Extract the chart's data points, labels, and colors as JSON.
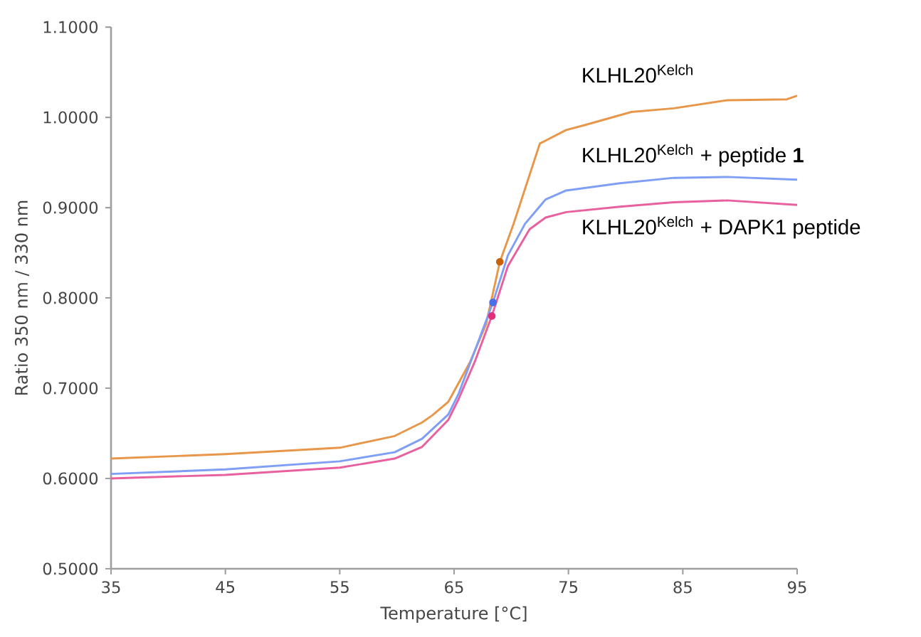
{
  "chart_data": {
    "type": "line",
    "xlabel": "Temperature [°C]",
    "ylabel": "Ratio 350 nm / 330 nm",
    "xlim": [
      35,
      95
    ],
    "xticks": [
      35,
      45,
      55,
      65,
      75,
      85,
      95
    ],
    "ylim": [
      0.5,
      1.1
    ],
    "yticks": [
      {
        "value": 0.5,
        "label": "0.5000"
      },
      {
        "value": 0.6,
        "label": "0.6000"
      },
      {
        "value": 0.7,
        "label": "0.7000"
      },
      {
        "value": 0.8,
        "label": "0.8000"
      },
      {
        "value": 0.9,
        "label": "0.9000"
      },
      {
        "value": 1.0,
        "label": "1.0000"
      },
      {
        "value": 1.1,
        "label": "1.1000"
      }
    ],
    "grid": false,
    "series": [
      {
        "name": "KLHL20$^{Kelch}$",
        "color": "#e8964a",
        "x": [
          35,
          45,
          55,
          59.8,
          62.2,
          63.1,
          64.5,
          66.4,
          67.8,
          69.0,
          70.2,
          72.5,
          74.8,
          76.3,
          80.5,
          84.2,
          88.9,
          94.1,
          95
        ],
        "values": [
          0.622,
          0.627,
          0.634,
          0.647,
          0.662,
          0.67,
          0.685,
          0.729,
          0.771,
          0.84,
          0.882,
          0.971,
          0.986,
          0.991,
          1.006,
          1.01,
          1.019,
          1.02,
          1.024
        ]
      },
      {
        "name": "KLHL20$^{Kelch}$ + peptide **1**",
        "color": "#7f9ef5",
        "x": [
          35,
          45,
          55,
          59.8,
          62.2,
          64.5,
          65.4,
          66.8,
          68.4,
          69.7,
          71.2,
          73.0,
          74.8,
          79.5,
          84.2,
          88.9,
          95
        ],
        "values": [
          0.605,
          0.61,
          0.619,
          0.629,
          0.644,
          0.671,
          0.694,
          0.741,
          0.795,
          0.847,
          0.882,
          0.909,
          0.919,
          0.927,
          0.933,
          0.934,
          0.931
        ]
      },
      {
        "name": "KLHL20$^{Kelch}$ + DAPK1 peptide",
        "color": "#e8609e",
        "x": [
          35,
          45,
          55,
          59.8,
          62.2,
          64.5,
          65.4,
          66.8,
          68.3,
          69.7,
          71.6,
          73.0,
          74.8,
          79.5,
          84.2,
          88.9,
          95
        ],
        "values": [
          0.6,
          0.604,
          0.612,
          0.622,
          0.635,
          0.665,
          0.688,
          0.729,
          0.78,
          0.835,
          0.876,
          0.889,
          0.895,
          0.901,
          0.906,
          0.908,
          0.903
        ]
      },
      {
        "type": "scatter",
        "marker": "circle",
        "x": [
          69.0,
          68.4,
          68.3
        ],
        "values": [
          0.84,
          0.795,
          0.78
        ],
        "colors": [
          "#c8620a",
          "#4a6fe8",
          "#e0307a"
        ]
      }
    ]
  }
}
